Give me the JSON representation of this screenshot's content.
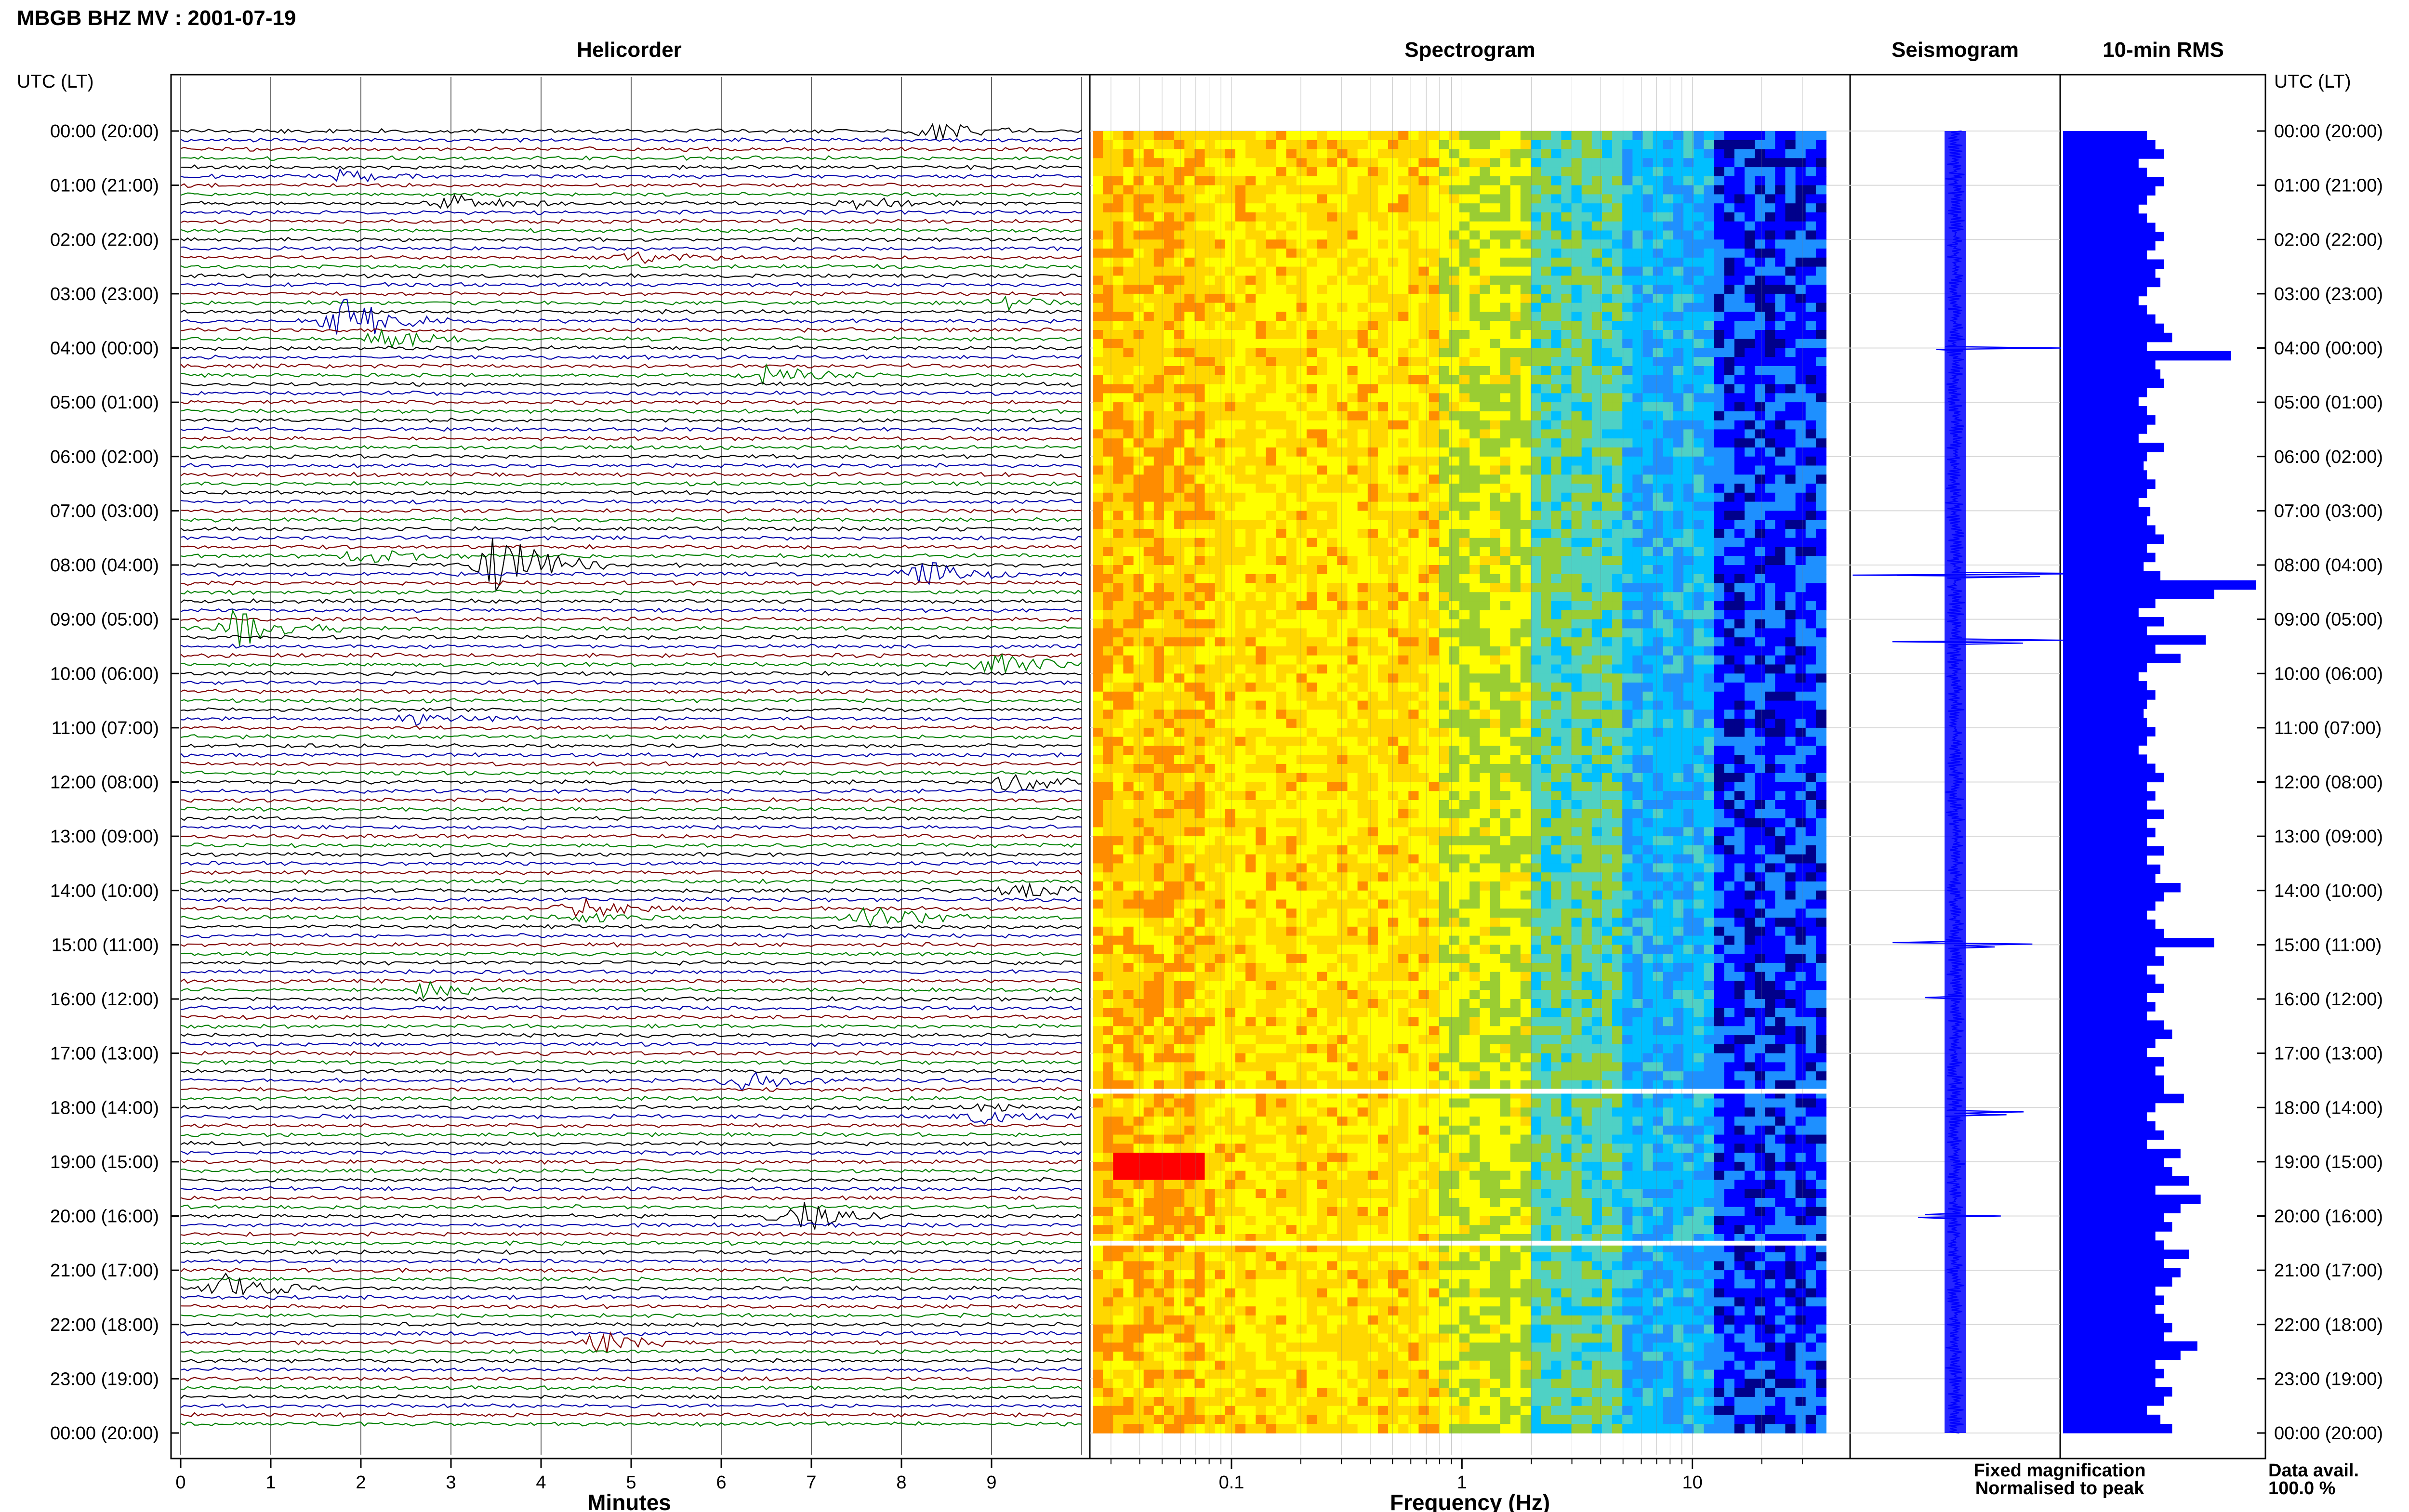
{
  "header": {
    "title": "MBGB BHZ MV : 2001-07-19",
    "time_axis_label": "UTC (LT)"
  },
  "panels": {
    "helicorder": {
      "title": "Helicorder",
      "xlabel": "Minutes"
    },
    "spectrogram": {
      "title": "Spectrogram",
      "xlabel": "Frequency (Hz)"
    },
    "seismogram": {
      "title": "Seismogram"
    },
    "rms": {
      "title": "10-min RMS"
    }
  },
  "legend": {
    "fixed": "Fixed magnification",
    "normalised": "Normalised to peak",
    "fixed_color": "#0000ff",
    "normalised_color": "#ff0000"
  },
  "data_avail": {
    "label": "Data avail.",
    "value": "100.0 %"
  },
  "colors": {
    "trace_cycle": [
      "#000000",
      "#0000aa",
      "#800000",
      "#008000"
    ],
    "rms_bar": "#0000ff",
    "seis": "#0000ff"
  },
  "chart_data": [
    {
      "type": "line",
      "panel": "helicorder",
      "title": "Helicorder",
      "xlabel": "Minutes",
      "xlim": [
        0,
        10
      ],
      "x_ticks": [
        "0",
        "1",
        "2",
        "3",
        "4",
        "5",
        "6",
        "7",
        "8",
        "9"
      ],
      "y_ticks": [
        "00:00 (20:00)",
        "01:00 (21:00)",
        "02:00 (22:00)",
        "03:00 (23:00)",
        "04:00 (00:00)",
        "05:00 (01:00)",
        "06:00 (02:00)",
        "07:00 (03:00)",
        "08:00 (04:00)",
        "09:00 (05:00)",
        "10:00 (06:00)",
        "11:00 (07:00)",
        "12:00 (08:00)",
        "13:00 (09:00)",
        "14:00 (10:00)",
        "15:00 (11:00)",
        "16:00 (12:00)",
        "17:00 (13:00)",
        "18:00 (14:00)",
        "19:00 (15:00)",
        "20:00 (16:00)",
        "21:00 (17:00)",
        "22:00 (18:00)",
        "23:00 (19:00)",
        "00:00 (20:00)"
      ],
      "traces_per_hour": 6,
      "events": [
        {
          "hour": 0.0,
          "min": 8.3,
          "amp": 0.3
        },
        {
          "hour": 0.8,
          "min": 1.8,
          "amp": 0.35
        },
        {
          "hour": 1.3,
          "min": 3.0,
          "amp": 0.45
        },
        {
          "hour": 1.3,
          "min": 7.5,
          "amp": 0.3
        },
        {
          "hour": 2.3,
          "min": 5.0,
          "amp": 0.3
        },
        {
          "hour": 3.2,
          "min": 9.1,
          "amp": 0.3
        },
        {
          "hour": 3.5,
          "min": 1.8,
          "amp": 0.9
        },
        {
          "hour": 3.8,
          "min": 2.2,
          "amp": 0.5
        },
        {
          "hour": 4.5,
          "min": 6.5,
          "amp": 0.4
        },
        {
          "hour": 7.8,
          "min": 2.0,
          "amp": 0.4
        },
        {
          "hour": 8.0,
          "min": 3.5,
          "amp": 1.3
        },
        {
          "hour": 8.2,
          "min": 8.2,
          "amp": 0.8
        },
        {
          "hour": 9.2,
          "min": 0.6,
          "amp": 1.0
        },
        {
          "hour": 9.8,
          "min": 9.0,
          "amp": 0.6
        },
        {
          "hour": 10.8,
          "min": 2.6,
          "amp": 0.3
        },
        {
          "hour": 12.0,
          "min": 9.2,
          "amp": 0.35
        },
        {
          "hour": 14.4,
          "min": 4.4,
          "amp": 0.9
        },
        {
          "hour": 14.5,
          "min": 7.6,
          "amp": 0.5
        },
        {
          "hour": 14.0,
          "min": 9.3,
          "amp": 0.35
        },
        {
          "hour": 15.8,
          "min": 2.7,
          "amp": 0.4
        },
        {
          "hour": 17.5,
          "min": 6.2,
          "amp": 0.4
        },
        {
          "hour": 18.1,
          "min": 8.9,
          "amp": 0.6
        },
        {
          "hour": 20.0,
          "min": 6.8,
          "amp": 0.7
        },
        {
          "hour": 21.3,
          "min": 0.5,
          "amp": 0.7
        },
        {
          "hour": 22.3,
          "min": 4.6,
          "amp": 0.6
        }
      ]
    },
    {
      "type": "heatmap",
      "panel": "spectrogram",
      "title": "Spectrogram",
      "xlabel": "Frequency (Hz)",
      "xscale": "log",
      "xlim": [
        0.025,
        38
      ],
      "x_ticks": [
        0.1,
        1,
        10
      ],
      "x_tick_labels": [
        "0.1",
        "1",
        "10"
      ],
      "colormap": [
        "#00008b",
        "#0000ff",
        "#1e90ff",
        "#00bfff",
        "#4fd1c5",
        "#9acd32",
        "#ffff00",
        "#ffd700",
        "#ff8c00",
        "#ff0000"
      ],
      "gaps_hour": [
        17.7,
        20.5
      ],
      "hotspot": {
        "hour": 19.0,
        "freq": 0.05
      }
    },
    {
      "type": "line",
      "panel": "seismogram",
      "title": "Seismogram",
      "spikes": [
        {
          "hour": 4.0,
          "amp": 0.9
        },
        {
          "hour": 8.2,
          "amp": 1.0
        },
        {
          "hour": 9.4,
          "amp": 0.7
        },
        {
          "hour": 15.0,
          "amp": 0.45
        },
        {
          "hour": 16.0,
          "amp": 0.5
        },
        {
          "hour": 18.1,
          "amp": 0.4
        },
        {
          "hour": 20.0,
          "amp": 0.35
        }
      ]
    },
    {
      "type": "bar",
      "panel": "rms",
      "title": "10-min RMS",
      "x": "hours",
      "values_note": "",
      "values": [
        0.5,
        0.55,
        0.6,
        0.45,
        0.5,
        0.6,
        0.55,
        0.5,
        0.45,
        0.5,
        0.55,
        0.6,
        0.55,
        0.5,
        0.6,
        0.55,
        0.58,
        0.5,
        0.45,
        0.5,
        0.55,
        0.6,
        0.65,
        0.5,
        1.0,
        0.55,
        0.58,
        0.6,
        0.5,
        0.45,
        0.5,
        0.55,
        0.5,
        0.45,
        0.6,
        0.5,
        0.48,
        0.5,
        0.55,
        0.5,
        0.45,
        0.52,
        0.5,
        0.55,
        0.6,
        0.5,
        0.55,
        0.48,
        0.58,
        1.15,
        0.9,
        0.55,
        0.45,
        0.6,
        0.5,
        0.85,
        0.55,
        0.7,
        0.5,
        0.45,
        0.5,
        0.55,
        0.5,
        0.48,
        0.5,
        0.55,
        0.5,
        0.45,
        0.5,
        0.55,
        0.6,
        0.5,
        0.55,
        0.5,
        0.6,
        0.5,
        0.55,
        0.5,
        0.6,
        0.5,
        0.58,
        0.55,
        0.7,
        0.6,
        0.55,
        0.5,
        0.55,
        0.6,
        0.9,
        0.55,
        0.6,
        0.5,
        0.55,
        0.6,
        0.5,
        0.55,
        0.5,
        0.6,
        0.65,
        0.55,
        0.5,
        0.6,
        0.55,
        0.6,
        0.6,
        0.72,
        0.55,
        0.5,
        0.55,
        0.6,
        0.5,
        0.7,
        0.6,
        0.65,
        0.75,
        0.55,
        0.82,
        0.7,
        0.6,
        0.65,
        0.55,
        0.6,
        0.75,
        0.6,
        0.7,
        0.65,
        0.55,
        0.6,
        0.55,
        0.6,
        0.65,
        0.6,
        0.8,
        0.7,
        0.55,
        0.6,
        0.55,
        0.65,
        0.6,
        0.5,
        0.58,
        0.65
      ]
    }
  ]
}
